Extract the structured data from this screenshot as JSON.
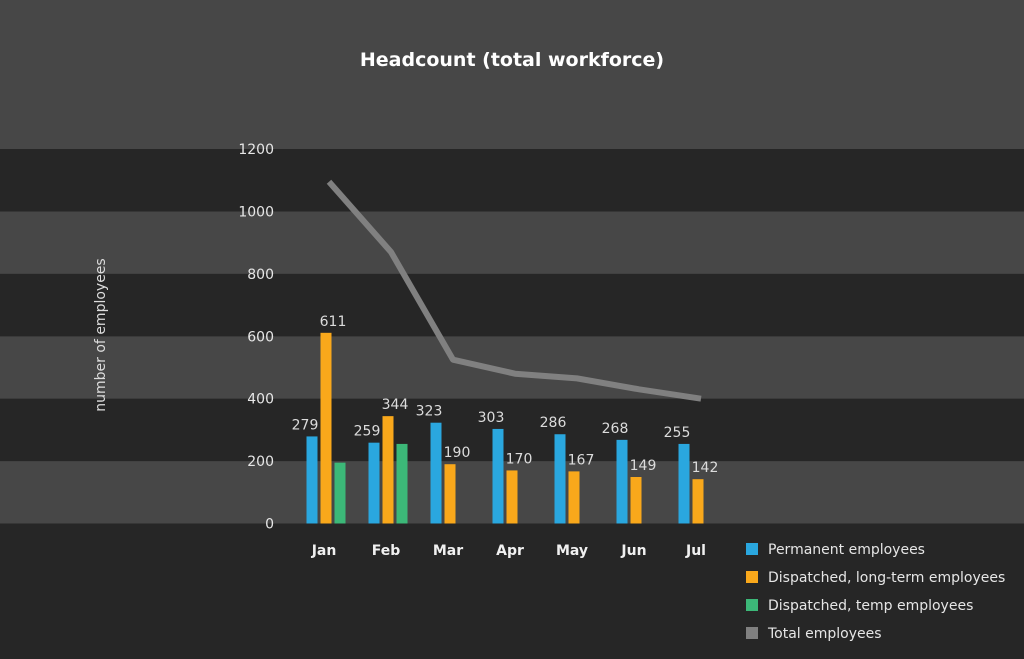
{
  "chart_data": {
    "type": "bar",
    "title": "Headcount (total workforce)",
    "xlabel": "",
    "ylabel": "number of employees",
    "ylim": [
      0,
      1200
    ],
    "yticks": [
      0,
      200,
      400,
      600,
      800,
      1000,
      1200
    ],
    "grid": "alternating horizontal bands",
    "legend_position": "bottom-right",
    "categories": [
      "Jan",
      "Feb",
      "Mar",
      "Apr",
      "May",
      "Jun",
      "Jul"
    ],
    "series": [
      {
        "name": "Permanent employees",
        "type": "bar",
        "color": "#2aa7df",
        "values": [
          279,
          259,
          323,
          303,
          286,
          268,
          255
        ]
      },
      {
        "name": "Dispatched, long-term employees",
        "type": "bar",
        "color": "#f9a81b",
        "values": [
          611,
          344,
          190,
          170,
          167,
          149,
          142
        ]
      },
      {
        "name": "Dispatched, temp employees",
        "type": "bar",
        "color": "#3cb878",
        "values": [
          195,
          255,
          null,
          null,
          null,
          null,
          null
        ]
      },
      {
        "name": "Total employees",
        "type": "line",
        "color": "#808080",
        "values": [
          1095,
          870,
          525,
          480,
          465,
          430,
          400
        ]
      }
    ],
    "data_labels": {
      "Permanent employees": true,
      "Dispatched, long-term employees": true,
      "Dispatched, temp employees": false,
      "Total employees": false
    }
  }
}
